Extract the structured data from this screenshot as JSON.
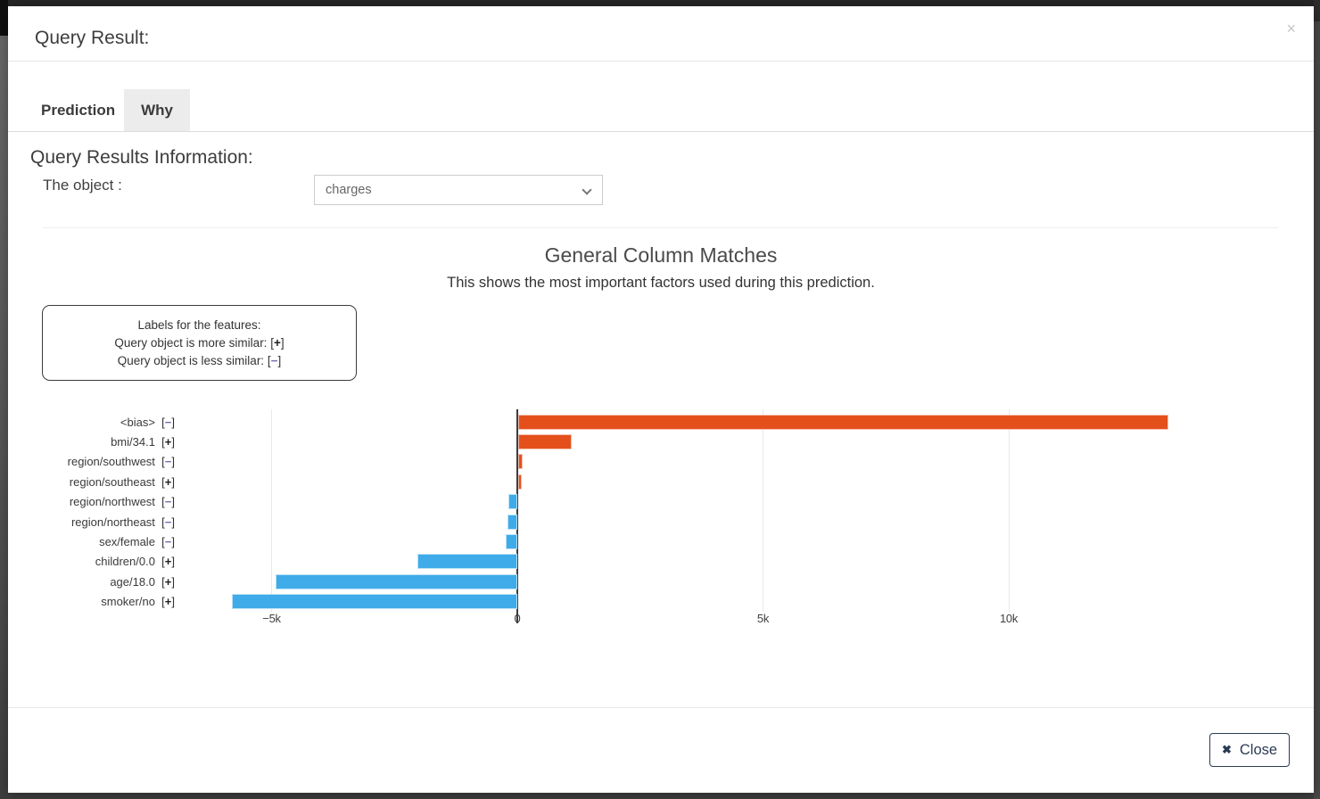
{
  "modal": {
    "title": "Query Result:",
    "close_x": "×",
    "tabs": [
      {
        "label": "Prediction",
        "active": false
      },
      {
        "label": "Why",
        "active": true
      }
    ],
    "section": {
      "heading": "Query Results Information:",
      "object_label": "The object :",
      "object_value": "charges"
    },
    "footer": {
      "close_icon": "✖",
      "close_label": "Close"
    }
  },
  "chart_data": {
    "type": "bar",
    "orientation": "horizontal",
    "title": "General Column Matches",
    "subtitle": "This shows the most important factors used during this prediction.",
    "legend_box": {
      "lines": [
        {
          "text": "Labels for the features:",
          "sign": null
        },
        {
          "text": "Query object is more similar: ",
          "sign": "+"
        },
        {
          "text": "Query object is less similar: ",
          "sign": "−"
        }
      ]
    },
    "categories": [
      "<bias>",
      "bmi/34.1",
      "region/southwest",
      "region/southeast",
      "region/northwest",
      "region/northeast",
      "sex/female",
      "children/0.0",
      "age/18.0",
      "smoker/no"
    ],
    "signs": [
      "−",
      "+",
      "−",
      "+",
      "−",
      "−",
      "−",
      "+",
      "+",
      "+"
    ],
    "values": [
      13230,
      1090,
      90,
      70,
      -190,
      -200,
      -240,
      -2040,
      -4920,
      -5810
    ],
    "x_ticks": [
      {
        "value": -5000,
        "label": "−5k"
      },
      {
        "value": 0,
        "label": "0"
      },
      {
        "value": 5000,
        "label": "5k"
      },
      {
        "value": 10000,
        "label": "10k"
      }
    ],
    "xlim": [
      -6000,
      14500
    ],
    "grid": true,
    "colors": {
      "positive": "#e4501c",
      "negative": "#3fabe8",
      "minus_sign": "#7a6fad",
      "plus_sign": "#1f1f1f"
    }
  }
}
